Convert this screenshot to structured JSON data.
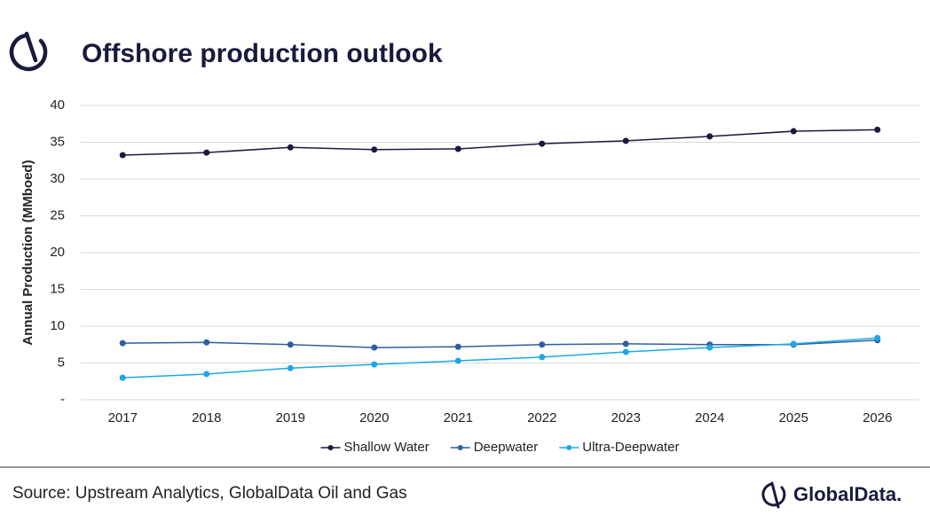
{
  "chart_data": {
    "type": "line",
    "title": "Offshore production outlook",
    "y_label": "Annual Production (MMboed)",
    "categories": [
      "2017",
      "2018",
      "2019",
      "2020",
      "2021",
      "2022",
      "2023",
      "2024",
      "2025",
      "2026"
    ],
    "series": [
      {
        "name": "Shallow Water",
        "color": "#1a1a3e",
        "values": [
          33.25,
          33.6,
          34.3,
          34.0,
          34.1,
          34.8,
          35.2,
          35.8,
          36.5,
          36.7
        ]
      },
      {
        "name": "Deepwater",
        "color": "#2f5fa0",
        "values": [
          7.7,
          7.8,
          7.5,
          7.1,
          7.2,
          7.5,
          7.6,
          7.5,
          7.5,
          8.1
        ]
      },
      {
        "name": "Ultra-Deepwater",
        "color": "#1ea7e8",
        "values": [
          3.0,
          3.5,
          4.3,
          4.8,
          5.3,
          5.8,
          6.5,
          7.1,
          7.6,
          8.4
        ]
      }
    ],
    "ylim": [
      0,
      40
    ],
    "yticks": [
      {
        "value": 0,
        "label": "-"
      },
      5,
      10,
      15,
      20,
      25,
      30,
      35,
      40
    ],
    "grid": true,
    "legend": "bottom",
    "source": "Source: Upstream Analytics, GlobalData Oil and Gas",
    "brand": "GlobalData."
  }
}
